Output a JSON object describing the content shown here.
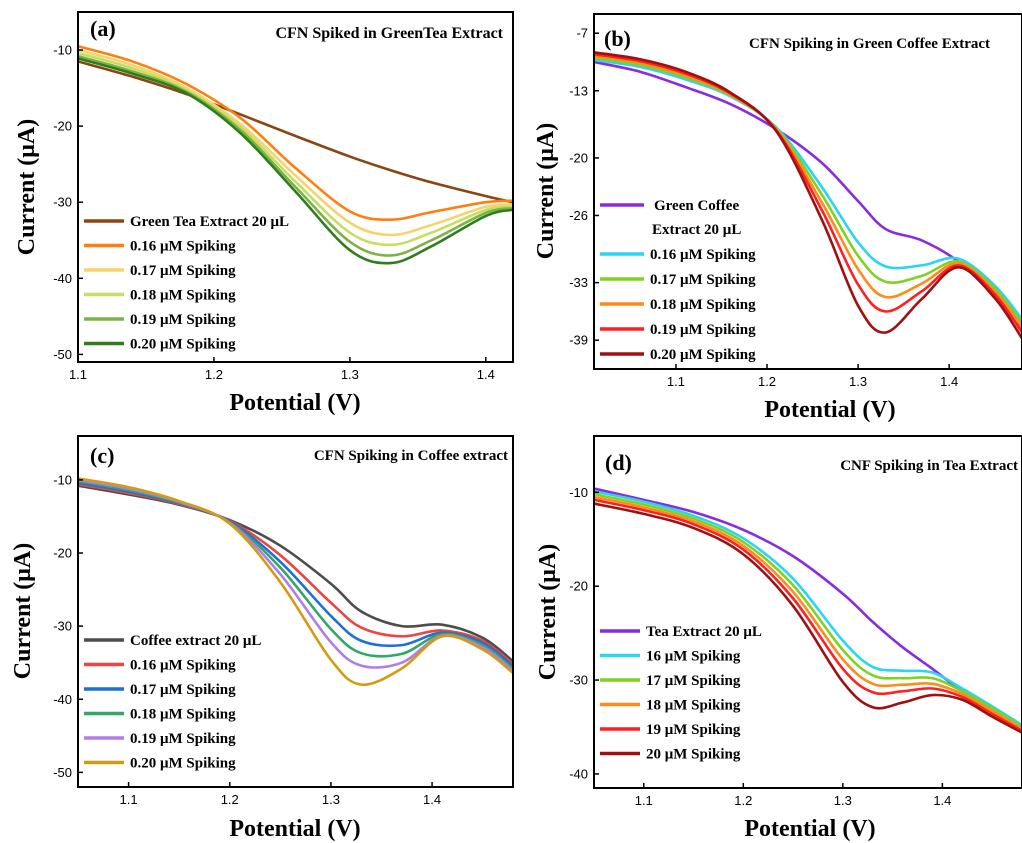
{
  "chart_data": [
    {
      "type": "line",
      "panel_label": "(a)",
      "title": "CFN Spiked in GreenTea Extract",
      "xlabel": "Potential (V)",
      "ylabel": "Current (μA)",
      "xlim": [
        1.1,
        1.42
      ],
      "ylim": [
        -51,
        -5
      ],
      "xticks": [
        1.1,
        1.2,
        1.3,
        1.4
      ],
      "xtick_labels": [
        "1.1",
        "1.2",
        "1.3",
        "1.4"
      ],
      "yticks": [
        -10,
        -20,
        -30,
        -40,
        -50
      ],
      "ytick_labels": [
        "-10",
        "-20",
        "-30",
        "-40",
        "-50"
      ],
      "legend_position": "bottom-left",
      "x": [
        1.1,
        1.14,
        1.18,
        1.22,
        1.26,
        1.3,
        1.33,
        1.36,
        1.4,
        1.42
      ],
      "series": [
        {
          "name": "Green Tea Extract 20 μL",
          "color": "#8b4513",
          "values": [
            -11.5,
            -13.5,
            -15.8,
            -18.5,
            -21.3,
            -24.0,
            -25.8,
            -27.4,
            -29.2,
            -30.0
          ]
        },
        {
          "name": "0.16 μM Spiking",
          "color": "#ff7f0e",
          "values": [
            -9.5,
            -11.5,
            -14.5,
            -19.0,
            -25.5,
            -31.2,
            -32.3,
            -31.3,
            -30.0,
            -29.8
          ]
        },
        {
          "name": "0.17 μM Spiking",
          "color": "#f6d36a",
          "values": [
            -10.0,
            -12.0,
            -15.0,
            -19.8,
            -26.5,
            -32.7,
            -34.3,
            -33.0,
            -30.6,
            -30.3
          ]
        },
        {
          "name": "0.18 μM Spiking",
          "color": "#c5de63",
          "values": [
            -10.4,
            -12.4,
            -15.3,
            -20.2,
            -27.3,
            -34.0,
            -35.6,
            -34.0,
            -31.0,
            -30.6
          ]
        },
        {
          "name": "0.19 μM Spiking",
          "color": "#7cb342",
          "values": [
            -10.8,
            -12.8,
            -15.5,
            -20.6,
            -28.0,
            -35.2,
            -37.0,
            -35.0,
            -31.4,
            -30.8
          ]
        },
        {
          "name": "0.20 μM Spiking",
          "color": "#2e7d1e",
          "values": [
            -11.1,
            -13.1,
            -15.7,
            -21.0,
            -28.6,
            -36.3,
            -38.0,
            -35.8,
            -31.8,
            -31.0
          ]
        }
      ]
    },
    {
      "type": "line",
      "panel_label": "(b)",
      "title": "CFN Spiking in Green Coffee Extract",
      "xlabel": "Potential (V)",
      "ylabel": "Current (μA)",
      "xlim": [
        1.01,
        1.48
      ],
      "ylim": [
        -42,
        -5
      ],
      "xticks": [
        1.1,
        1.2,
        1.3,
        1.4
      ],
      "xtick_labels": [
        "1.1",
        "1.2",
        "1.3",
        "1.4"
      ],
      "yticks": [
        -7,
        -13,
        -20,
        -26,
        -33,
        -39
      ],
      "ytick_labels": [
        "-7",
        "-13",
        "-20",
        "-26",
        "-33",
        "-39"
      ],
      "legend_position": "bottom-left",
      "x": [
        1.01,
        1.06,
        1.11,
        1.16,
        1.21,
        1.26,
        1.3,
        1.33,
        1.37,
        1.41,
        1.45,
        1.48
      ],
      "series": [
        {
          "name": "Green Coffee Extract 20 μL",
          "color": "#8a2be2",
          "values": [
            -10.0,
            -11.0,
            -12.6,
            -14.4,
            -17.0,
            -20.5,
            -24.5,
            -27.4,
            -28.6,
            -30.8,
            -34.5,
            -38.0
          ]
        },
        {
          "name": "0.16 μM Spiking",
          "color": "#29d4f5",
          "values": [
            -9.8,
            -10.5,
            -11.8,
            -13.6,
            -16.8,
            -23.0,
            -28.8,
            -31.3,
            -31.2,
            -30.5,
            -33.3,
            -36.8
          ]
        },
        {
          "name": "0.17 μM Spiking",
          "color": "#7ed321",
          "values": [
            -9.6,
            -10.3,
            -11.6,
            -13.5,
            -16.9,
            -23.8,
            -30.2,
            -32.9,
            -32.3,
            -30.8,
            -33.6,
            -37.2
          ]
        },
        {
          "name": "0.18 μM Spiking",
          "color": "#ff8c1a",
          "values": [
            -9.4,
            -10.1,
            -11.4,
            -13.4,
            -17.0,
            -24.6,
            -31.6,
            -34.5,
            -33.1,
            -31.0,
            -33.9,
            -37.6
          ]
        },
        {
          "name": "0.19 μM Spiking",
          "color": "#ff2020",
          "values": [
            -9.2,
            -9.9,
            -11.2,
            -13.3,
            -17.1,
            -25.4,
            -33.2,
            -36.0,
            -33.9,
            -31.2,
            -34.2,
            -38.2
          ]
        },
        {
          "name": "0.20 μM Spiking",
          "color": "#a01010",
          "values": [
            -9.0,
            -9.7,
            -11.0,
            -13.2,
            -17.2,
            -26.4,
            -35.4,
            -38.2,
            -34.7,
            -31.4,
            -34.6,
            -38.8
          ]
        }
      ]
    },
    {
      "type": "line",
      "panel_label": "(c)",
      "title": "CFN Spiking in Coffee extract",
      "xlabel": "Potential (V)",
      "ylabel": "Current (μA)",
      "xlim": [
        1.05,
        1.48
      ],
      "ylim": [
        -52,
        -4
      ],
      "xticks": [
        1.1,
        1.2,
        1.3,
        1.4
      ],
      "xtick_labels": [
        "1.1",
        "1.2",
        "1.3",
        "1.4"
      ],
      "yticks": [
        -10,
        -20,
        -30,
        -40,
        -50
      ],
      "ytick_labels": [
        "-10",
        "-20",
        "-30",
        "-40",
        "-50"
      ],
      "legend_position": "bottom-left",
      "x": [
        1.05,
        1.1,
        1.15,
        1.2,
        1.25,
        1.3,
        1.33,
        1.37,
        1.41,
        1.45,
        1.48
      ],
      "series": [
        {
          "name": "Coffee extract 20 μL",
          "color": "#4d4d4d",
          "values": [
            -10.8,
            -12.0,
            -13.4,
            -15.5,
            -19.0,
            -24.2,
            -28.0,
            -30.0,
            -29.8,
            -31.6,
            -34.8
          ]
        },
        {
          "name": "0.16 μM Spiking",
          "color": "#ee4444",
          "values": [
            -10.6,
            -11.8,
            -13.3,
            -15.6,
            -20.3,
            -26.8,
            -30.2,
            -31.4,
            -30.6,
            -32.0,
            -35.2
          ]
        },
        {
          "name": "0.17 μM Spiking",
          "color": "#1f6fd6",
          "values": [
            -10.4,
            -11.6,
            -13.2,
            -15.7,
            -21.2,
            -28.6,
            -32.0,
            -32.6,
            -30.9,
            -32.3,
            -35.5
          ]
        },
        {
          "name": "0.18 μM Spiking",
          "color": "#2ea866",
          "values": [
            -10.2,
            -11.4,
            -13.1,
            -15.8,
            -22.0,
            -30.4,
            -33.7,
            -33.8,
            -31.1,
            -32.6,
            -35.8
          ]
        },
        {
          "name": "0.19 μM Spiking",
          "color": "#b07ee8",
          "values": [
            -10.0,
            -11.2,
            -13.0,
            -15.9,
            -22.9,
            -32.2,
            -35.4,
            -35.0,
            -31.3,
            -32.9,
            -36.1
          ]
        },
        {
          "name": "0.20 μM Spiking",
          "color": "#d49a12",
          "values": [
            -9.8,
            -11.0,
            -12.9,
            -16.0,
            -24.0,
            -34.6,
            -38.0,
            -35.8,
            -31.4,
            -33.2,
            -36.4
          ]
        }
      ]
    },
    {
      "type": "line",
      "panel_label": "(d)",
      "title": "CNF Spiking in Tea Extract",
      "xlabel": "Potential (V)",
      "ylabel": "Current (μA)",
      "xlim": [
        1.05,
        1.48
      ],
      "ylim": [
        -41.5,
        -4
      ],
      "xticks": [
        1.1,
        1.2,
        1.3,
        1.4
      ],
      "xtick_labels": [
        "1.1",
        "1.2",
        "1.3",
        "1.4"
      ],
      "yticks": [
        -10,
        -20,
        -30,
        -40
      ],
      "ytick_labels": [
        "-10",
        "-20",
        "-30",
        "-40"
      ],
      "legend_position": "bottom-left",
      "x": [
        1.05,
        1.1,
        1.15,
        1.2,
        1.25,
        1.3,
        1.33,
        1.36,
        1.39,
        1.42,
        1.45,
        1.48
      ],
      "series": [
        {
          "name": "Tea Extract 20 μL",
          "color": "#8a2be2",
          "values": [
            -9.6,
            -10.8,
            -12.1,
            -14.0,
            -16.8,
            -20.8,
            -23.8,
            -26.5,
            -28.8,
            -31.2,
            -33.0,
            -34.8
          ]
        },
        {
          "name": "16 μM Spiking",
          "color": "#29d4f5",
          "values": [
            -9.9,
            -11.0,
            -12.5,
            -14.9,
            -19.2,
            -25.8,
            -28.6,
            -29.0,
            -29.2,
            -30.9,
            -32.8,
            -34.8
          ]
        },
        {
          "name": "17 μM Spiking",
          "color": "#7ed321",
          "values": [
            -10.2,
            -11.3,
            -12.8,
            -15.3,
            -19.9,
            -26.8,
            -29.5,
            -29.8,
            -29.8,
            -31.2,
            -33.0,
            -35.0
          ]
        },
        {
          "name": "18 μM Spiking",
          "color": "#ff8c1a",
          "values": [
            -10.5,
            -11.6,
            -13.1,
            -15.7,
            -20.6,
            -27.8,
            -30.4,
            -30.5,
            -30.4,
            -31.5,
            -33.3,
            -35.2
          ]
        },
        {
          "name": "19 μM Spiking",
          "color": "#ff2020",
          "values": [
            -10.8,
            -11.9,
            -13.4,
            -16.1,
            -21.3,
            -28.8,
            -31.3,
            -31.2,
            -30.9,
            -31.8,
            -33.6,
            -35.4
          ]
        },
        {
          "name": "20 μM Spiking",
          "color": "#a01010",
          "values": [
            -11.2,
            -12.3,
            -13.8,
            -16.6,
            -22.1,
            -30.2,
            -32.9,
            -32.4,
            -31.6,
            -32.1,
            -33.9,
            -35.6
          ]
        }
      ]
    }
  ]
}
